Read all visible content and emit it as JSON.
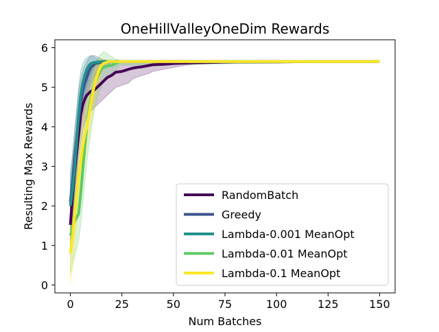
{
  "chart_data": {
    "type": "line",
    "title": "OneHillValleyOneDim Rewards",
    "xlabel": "Num Batches",
    "ylabel": "Resulting Max Rewards",
    "xlim": [
      -7.5,
      157.5
    ],
    "ylim": [
      -0.2,
      6.2
    ],
    "xticks": [
      0,
      25,
      50,
      75,
      100,
      125,
      150
    ],
    "yticks": [
      0,
      1,
      2,
      3,
      4,
      5,
      6
    ],
    "legend_position": "lower-right",
    "series": [
      {
        "name": "RandomBatch",
        "color": "#440154",
        "x": [
          0,
          1,
          2,
          3,
          4,
          5,
          6,
          7,
          8,
          10,
          12,
          14,
          16,
          18,
          20,
          22,
          25,
          28,
          30,
          32,
          35,
          38,
          40,
          45,
          50,
          55,
          60,
          70,
          80,
          100,
          120,
          150
        ],
        "y": [
          1.52,
          2.2,
          2.8,
          3.3,
          3.8,
          4.3,
          4.55,
          4.7,
          4.8,
          4.9,
          4.95,
          5.05,
          5.15,
          5.25,
          5.3,
          5.38,
          5.4,
          5.45,
          5.48,
          5.5,
          5.52,
          5.55,
          5.57,
          5.58,
          5.6,
          5.61,
          5.62,
          5.63,
          5.64,
          5.64,
          5.65,
          5.65
        ],
        "band_low": [
          1.0,
          1.6,
          2.2,
          2.7,
          3.2,
          3.6,
          3.9,
          4.1,
          4.3,
          4.4,
          4.5,
          4.6,
          4.7,
          4.8,
          4.9,
          5.0,
          5.05,
          5.1,
          5.2,
          5.25,
          5.3,
          5.35,
          5.4,
          5.45,
          5.5,
          5.55,
          5.58,
          5.6,
          5.62,
          5.63,
          5.64,
          5.65
        ],
        "band_high": [
          2.0,
          2.8,
          3.4,
          3.9,
          4.4,
          4.8,
          5.1,
          5.3,
          5.4,
          5.5,
          5.55,
          5.6,
          5.62,
          5.64,
          5.65,
          5.65,
          5.65,
          5.65,
          5.65,
          5.65,
          5.65,
          5.65,
          5.65,
          5.65,
          5.65,
          5.65,
          5.65,
          5.65,
          5.65,
          5.65,
          5.65,
          5.65
        ]
      },
      {
        "name": "Greedy",
        "color": "#3b528b",
        "x": [
          0,
          1,
          2,
          3,
          4,
          5,
          6,
          7,
          8,
          9,
          10,
          12,
          14,
          16,
          18,
          20,
          150
        ],
        "y": [
          2.1,
          2.6,
          3.2,
          3.7,
          4.2,
          4.6,
          4.9,
          5.1,
          5.25,
          5.4,
          5.5,
          5.6,
          5.62,
          5.63,
          5.64,
          5.65,
          5.65
        ],
        "band_low": [
          1.4,
          1.9,
          2.5,
          3.0,
          3.5,
          3.9,
          4.2,
          4.5,
          4.7,
          4.9,
          5.1,
          5.3,
          5.45,
          5.55,
          5.6,
          5.62,
          5.65
        ],
        "band_high": [
          2.8,
          3.3,
          3.9,
          4.4,
          4.9,
          5.2,
          5.4,
          5.55,
          5.65,
          5.75,
          5.8,
          5.8,
          5.75,
          5.7,
          5.68,
          5.66,
          5.65
        ]
      },
      {
        "name": "Lambda-0.001 MeanOpt",
        "color": "#21918c",
        "x": [
          0,
          1,
          2,
          3,
          4,
          5,
          6,
          7,
          8,
          9,
          10,
          11,
          12,
          14,
          16,
          18,
          20,
          150
        ],
        "y": [
          2.0,
          2.4,
          2.9,
          3.6,
          4.3,
          4.8,
          5.1,
          5.3,
          5.45,
          5.55,
          5.6,
          5.62,
          5.63,
          5.64,
          5.65,
          5.65,
          5.65,
          5.65
        ],
        "band_low": [
          1.2,
          1.6,
          2.1,
          2.8,
          3.5,
          4.1,
          4.5,
          4.8,
          5.0,
          5.2,
          5.35,
          5.45,
          5.5,
          5.58,
          5.62,
          5.64,
          5.65,
          5.65
        ],
        "band_high": [
          2.8,
          3.2,
          3.7,
          4.4,
          5.0,
          5.4,
          5.6,
          5.7,
          5.75,
          5.78,
          5.8,
          5.78,
          5.75,
          5.7,
          5.68,
          5.66,
          5.65,
          5.65
        ]
      },
      {
        "name": "Lambda-0.01 MeanOpt",
        "color": "#5ec962",
        "x": [
          0,
          1,
          2,
          3,
          4,
          5,
          6,
          7,
          8,
          9,
          10,
          11,
          12,
          13,
          14,
          15,
          16,
          17,
          18,
          19,
          20,
          22,
          24,
          150
        ],
        "y": [
          1.25,
          1.4,
          1.6,
          1.7,
          1.8,
          2.3,
          2.9,
          3.5,
          4.0,
          4.4,
          4.7,
          4.95,
          5.1,
          5.25,
          5.35,
          5.45,
          5.5,
          5.52,
          5.54,
          5.55,
          5.55,
          5.6,
          5.65,
          5.65
        ],
        "band_low": [
          0.3,
          0.5,
          0.7,
          0.9,
          1.1,
          1.5,
          2.0,
          2.6,
          3.1,
          3.5,
          3.9,
          4.2,
          4.5,
          4.7,
          4.9,
          5.0,
          5.1,
          5.2,
          5.25,
          5.3,
          5.35,
          5.45,
          5.55,
          5.65
        ],
        "band_high": [
          2.2,
          2.4,
          2.6,
          2.8,
          3.0,
          3.4,
          3.9,
          4.4,
          4.8,
          5.1,
          5.3,
          5.5,
          5.6,
          5.7,
          5.8,
          5.85,
          5.9,
          5.88,
          5.85,
          5.8,
          5.78,
          5.72,
          5.68,
          5.65
        ]
      },
      {
        "name": "Lambda-0.1 MeanOpt",
        "color": "#fde725",
        "x": [
          0,
          1,
          2,
          3,
          4,
          5,
          6,
          7,
          8,
          9,
          10,
          11,
          12,
          13,
          14,
          15,
          16,
          17,
          18,
          19,
          20,
          150
        ],
        "y": [
          0.8,
          1.2,
          1.7,
          2.2,
          2.7,
          3.1,
          3.5,
          3.8,
          4.0,
          4.3,
          4.6,
          4.9,
          5.1,
          5.3,
          5.45,
          5.55,
          5.6,
          5.62,
          5.64,
          5.65,
          5.65,
          5.65
        ],
        "band_low": [
          0.05,
          0.4,
          0.9,
          1.4,
          1.9,
          2.4,
          2.8,
          3.1,
          3.4,
          3.7,
          4.0,
          4.3,
          4.6,
          4.9,
          5.1,
          5.3,
          5.45,
          5.55,
          5.6,
          5.63,
          5.65,
          5.65
        ],
        "band_high": [
          1.6,
          2.0,
          2.5,
          3.0,
          3.5,
          3.8,
          4.2,
          4.5,
          4.7,
          4.9,
          5.1,
          5.3,
          5.5,
          5.6,
          5.7,
          5.72,
          5.72,
          5.7,
          5.68,
          5.66,
          5.65,
          5.65
        ]
      }
    ]
  }
}
